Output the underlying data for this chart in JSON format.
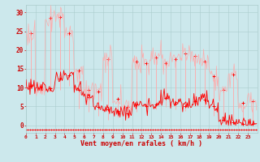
{
  "bg_color": "#cce8ec",
  "grid_color": "#aacccc",
  "line_color_mean": "#ff0000",
  "line_color_gust": "#ffaaaa",
  "xlabel": "Vent moyen/en rafales ( km/h )",
  "xlabel_color": "#cc0000",
  "tick_color": "#cc0000",
  "ylim": [
    -2,
    32
  ],
  "yticks": [
    0,
    5,
    10,
    15,
    20,
    25,
    30
  ],
  "xlim": [
    0,
    24
  ],
  "n_hours": 24,
  "xtick_labels": [
    "0",
    "1",
    "2",
    "3",
    "4",
    "5",
    "6",
    "7",
    "8",
    "9",
    "10",
    "11",
    "12",
    "13",
    "14",
    "15",
    "16",
    "17",
    "18",
    "19",
    "20",
    "21",
    "22",
    "23"
  ],
  "mean_wind": [
    10.5,
    10.3,
    9.8,
    12.5,
    13.2,
    9.5,
    7.5,
    4.8,
    4.2,
    3.8,
    3.2,
    5.5,
    5.0,
    5.5,
    7.2,
    5.8,
    5.2,
    6.5,
    6.8,
    5.2,
    1.5,
    0.8,
    0.4,
    0.3
  ],
  "gust_wind": [
    24.5,
    9.5,
    28.5,
    28.8,
    24.5,
    14.5,
    9.5,
    9.0,
    17.5,
    7.0,
    4.8,
    17.0,
    16.5,
    18.0,
    16.5,
    17.5,
    19.0,
    18.5,
    17.0,
    13.0,
    9.5,
    13.5,
    6.0,
    6.5
  ],
  "min_wind": [
    10.0,
    9.5,
    9.0,
    9.5,
    10.5,
    4.5,
    3.5,
    2.5,
    1.5,
    2.0,
    1.8,
    3.5,
    3.8,
    4.2,
    4.8,
    4.2,
    3.8,
    5.0,
    4.8,
    2.5,
    0.5,
    0.5,
    0.2,
    0.1
  ],
  "sub_pts": 12,
  "mean_noise": 1.0,
  "gust_noise": 1.5,
  "min_noise": 0.4,
  "bottom_y": -1.2,
  "figsize": [
    3.2,
    2.0
  ],
  "dpi": 100
}
